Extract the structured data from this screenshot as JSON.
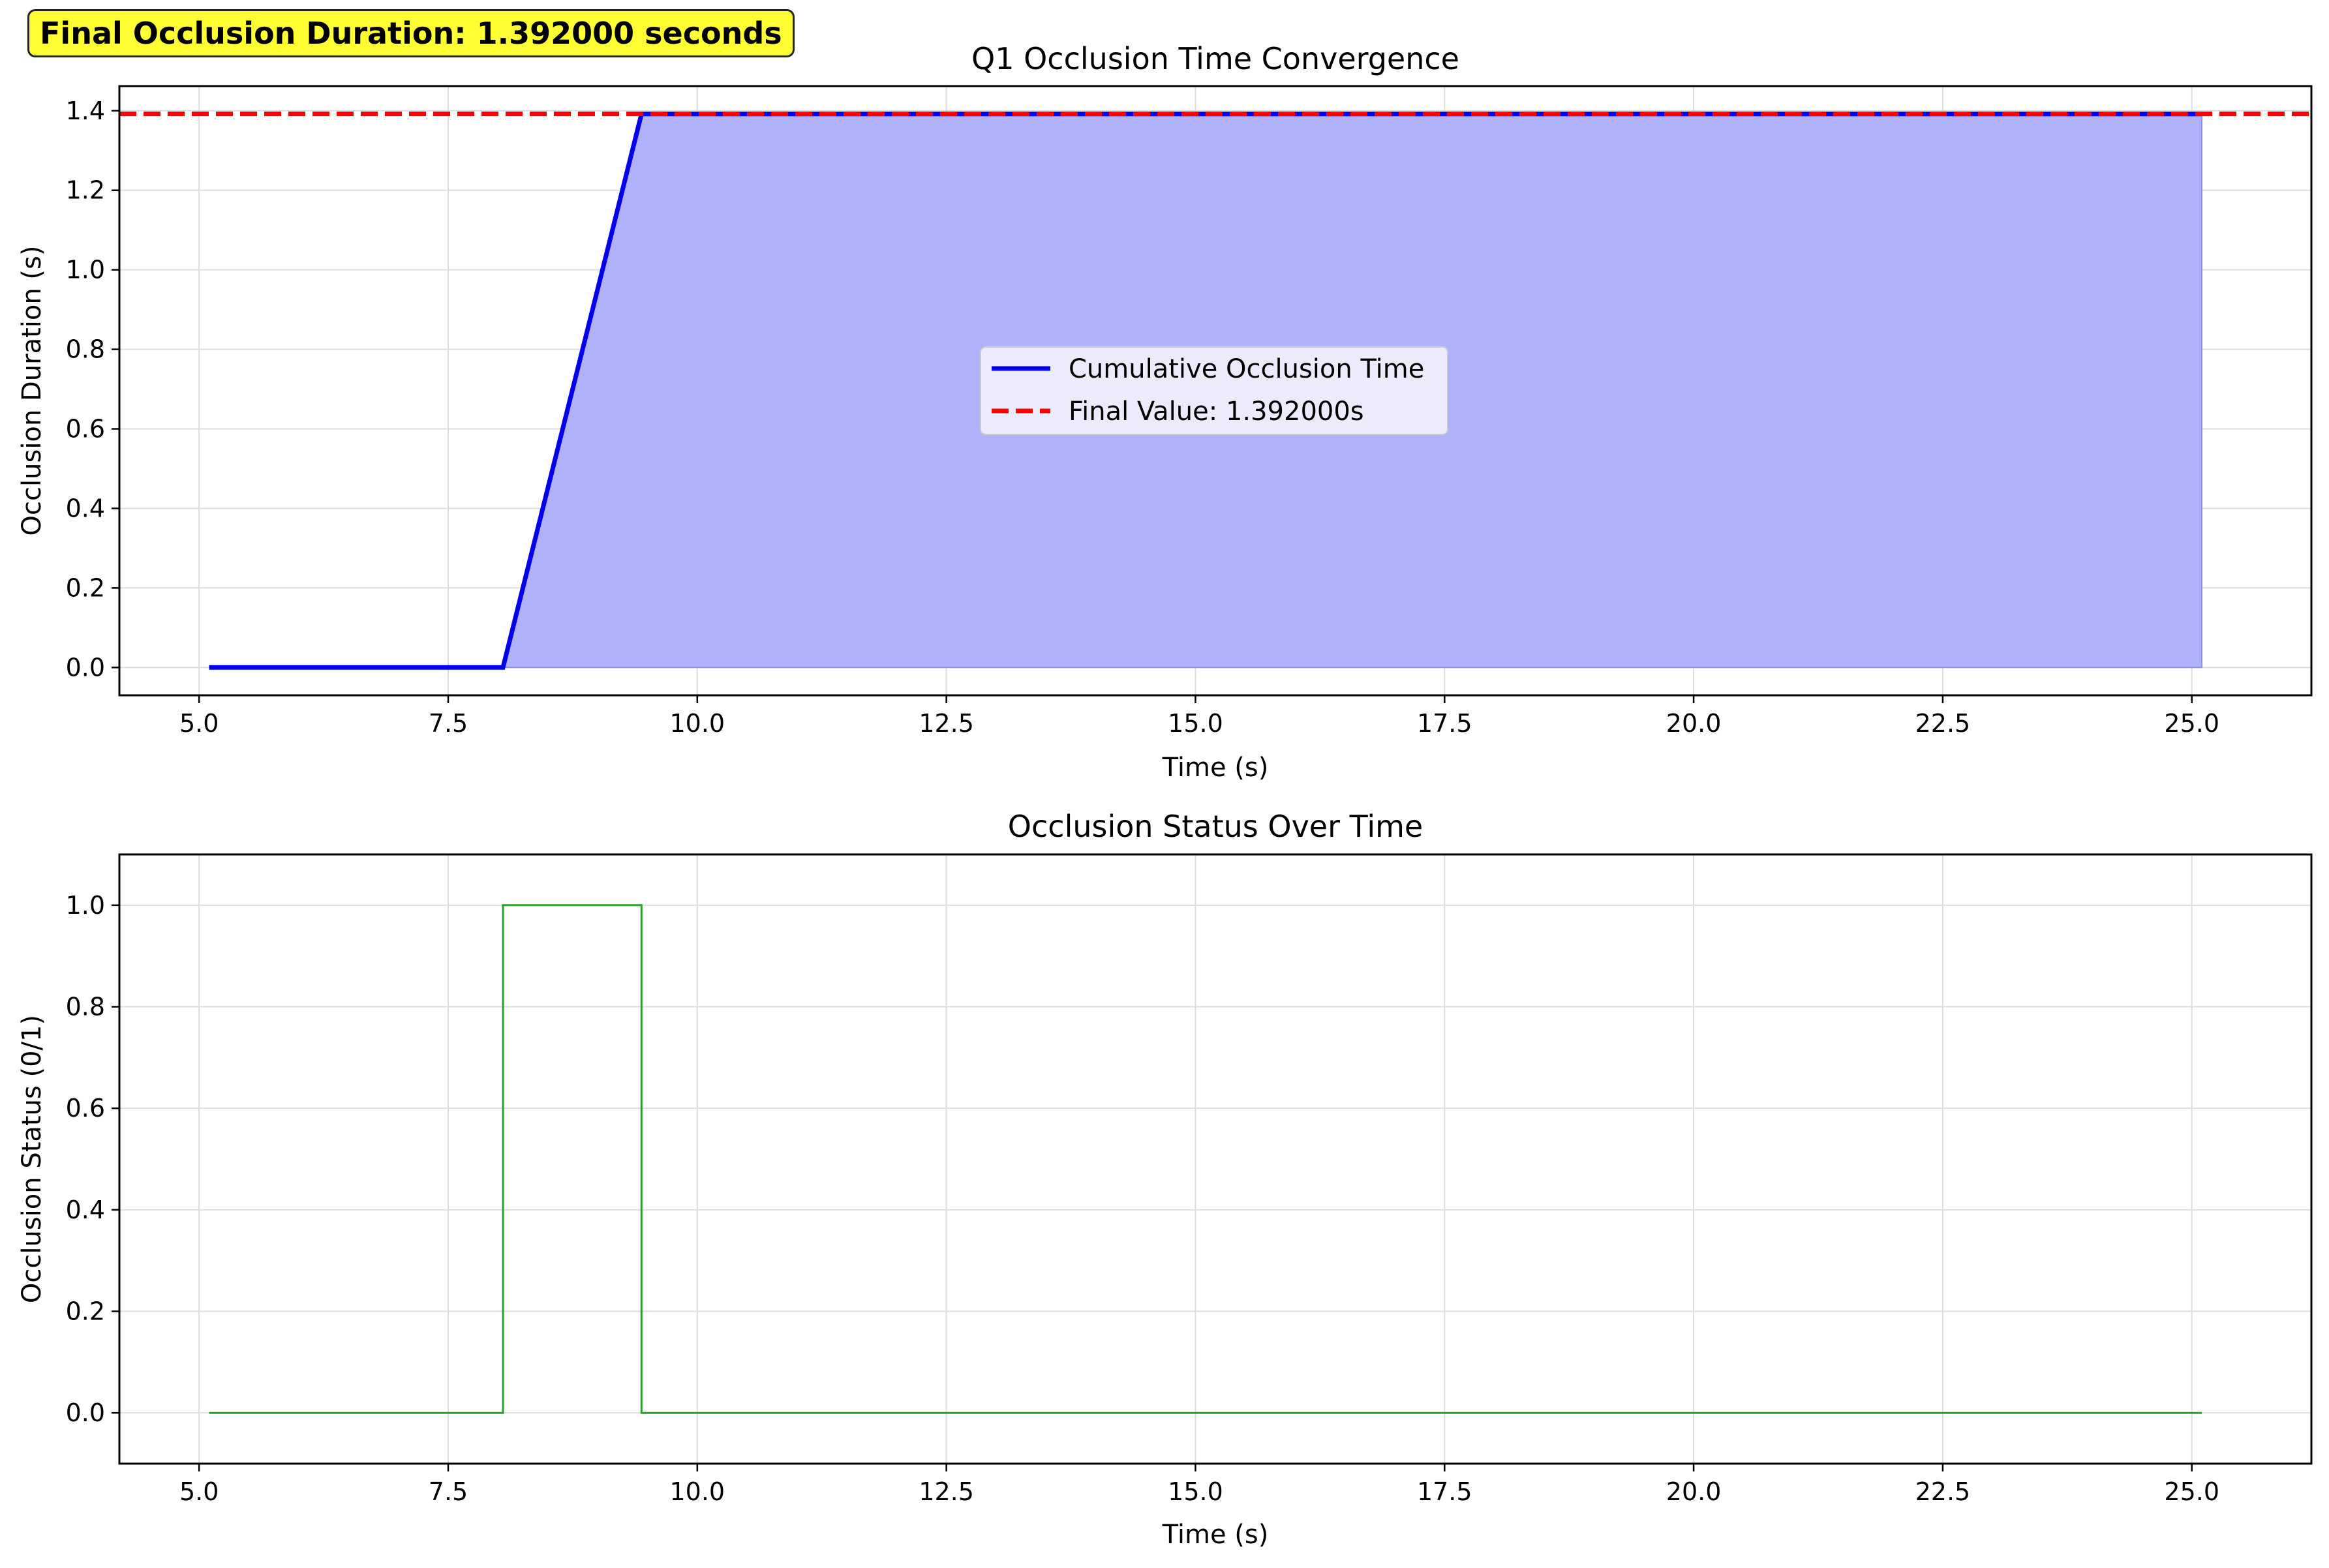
{
  "banner": {
    "text": "Final Occlusion Duration: 1.392000 seconds"
  },
  "chart_data": [
    {
      "type": "line",
      "title": "Q1 Occlusion Time Convergence",
      "xlabel": "Time (s)",
      "ylabel": "Occlusion Duration (s)",
      "xlim": [
        4.2,
        26.2
      ],
      "ylim": [
        -0.07,
        1.462
      ],
      "xticks": [
        5.0,
        7.5,
        10.0,
        12.5,
        15.0,
        17.5,
        20.0,
        22.5,
        25.0
      ],
      "xtick_labels": [
        "5.0",
        "7.5",
        "10.0",
        "12.5",
        "15.0",
        "17.5",
        "20.0",
        "22.5",
        "25.0"
      ],
      "yticks": [
        0.0,
        0.2,
        0.4,
        0.6,
        0.8,
        1.0,
        1.2,
        1.4
      ],
      "ytick_labels": [
        "0.0",
        "0.2",
        "0.4",
        "0.6",
        "0.8",
        "1.0",
        "1.2",
        "1.4"
      ],
      "grid": true,
      "legend_position": "center",
      "series": [
        {
          "name": "Cumulative Occlusion Time",
          "style": "solid",
          "color": "#0000ee",
          "fill_color": "#b0b3fb",
          "x": [
            5.1,
            8.05,
            9.44,
            25.1
          ],
          "y": [
            0.0,
            0.0,
            1.392,
            1.392
          ]
        },
        {
          "name": "Final Value: 1.392000s",
          "style": "dashed",
          "color": "#ff0000",
          "y_constant": 1.392
        }
      ]
    },
    {
      "type": "line",
      "title": "Occlusion Status Over Time",
      "xlabel": "Time (s)",
      "ylabel": "Occlusion Status (0/1)",
      "xlim": [
        4.2,
        26.2
      ],
      "ylim": [
        -0.1,
        1.1
      ],
      "xticks": [
        5.0,
        7.5,
        10.0,
        12.5,
        15.0,
        17.5,
        20.0,
        22.5,
        25.0
      ],
      "xtick_labels": [
        "5.0",
        "7.5",
        "10.0",
        "12.5",
        "15.0",
        "17.5",
        "20.0",
        "22.5",
        "25.0"
      ],
      "yticks": [
        0.0,
        0.2,
        0.4,
        0.6,
        0.8,
        1.0
      ],
      "ytick_labels": [
        "0.0",
        "0.2",
        "0.4",
        "0.6",
        "0.8",
        "1.0"
      ],
      "grid": true,
      "series": [
        {
          "style": "step",
          "color": "#2ca02c",
          "x": [
            5.1,
            8.05,
            8.05,
            9.44,
            9.44,
            25.1
          ],
          "y": [
            0,
            0,
            1,
            1,
            0,
            0
          ]
        }
      ]
    }
  ]
}
